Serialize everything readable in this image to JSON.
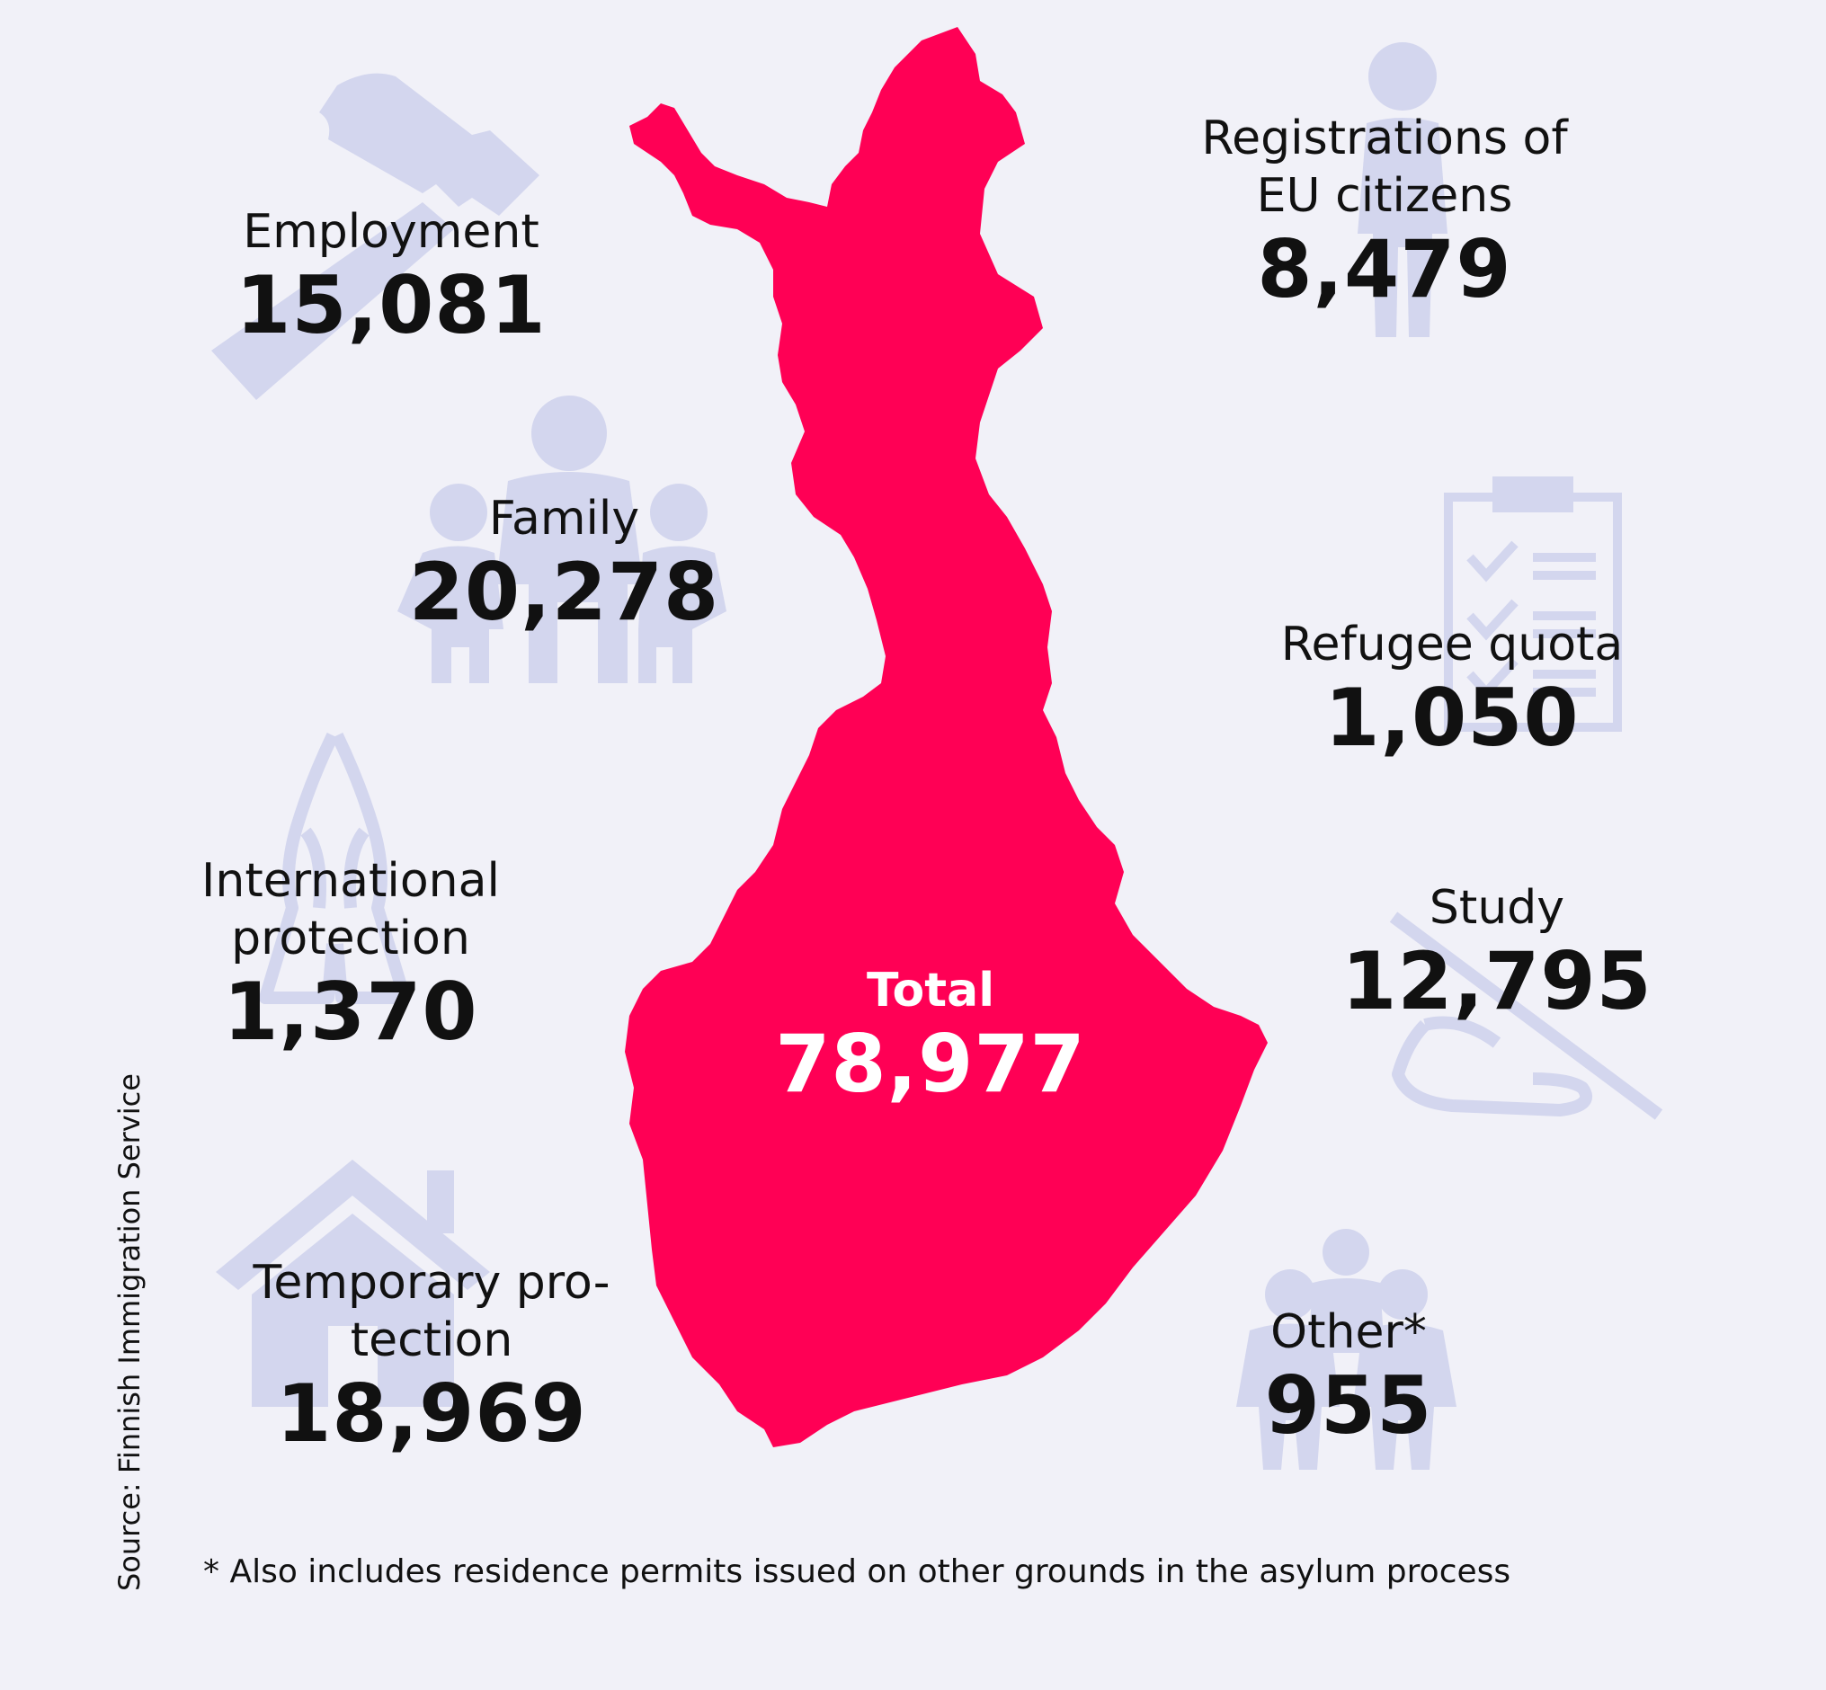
{
  "colors": {
    "background": "#f1f1f8",
    "map": "#ff0055",
    "icon": "#d3d6ee",
    "text": "#111111"
  },
  "total": {
    "label": "Total",
    "value": "78,977"
  },
  "categories": {
    "employment": {
      "label": "Employment",
      "value": "15,081",
      "icon": "hammer-icon"
    },
    "family": {
      "label": "Family",
      "value": "20,278",
      "icon": "family-icon"
    },
    "international": {
      "label_line1": "International",
      "label_line2": "protection",
      "value": "1,370",
      "icon": "praying-hands-icon"
    },
    "temporary": {
      "label_line1": "Temporary pro-",
      "label_line2": "tection",
      "value": "18,969",
      "icon": "house-icon"
    },
    "eu": {
      "label_line1": "Registrations of",
      "label_line2": "EU citizens",
      "value": "8,479",
      "icon": "person-icon"
    },
    "refugee": {
      "label": "Refugee quota",
      "value": "1,050",
      "icon": "clipboard-icon"
    },
    "study": {
      "label": "Study",
      "value": "12,795",
      "icon": "writing-hand-icon"
    },
    "other": {
      "label": "Other*",
      "value": "955",
      "icon": "group-icon"
    }
  },
  "source": "Source: Finnish Immigration Service",
  "footnote": "* Also includes residence permits issued on other grounds in the asylum process"
}
